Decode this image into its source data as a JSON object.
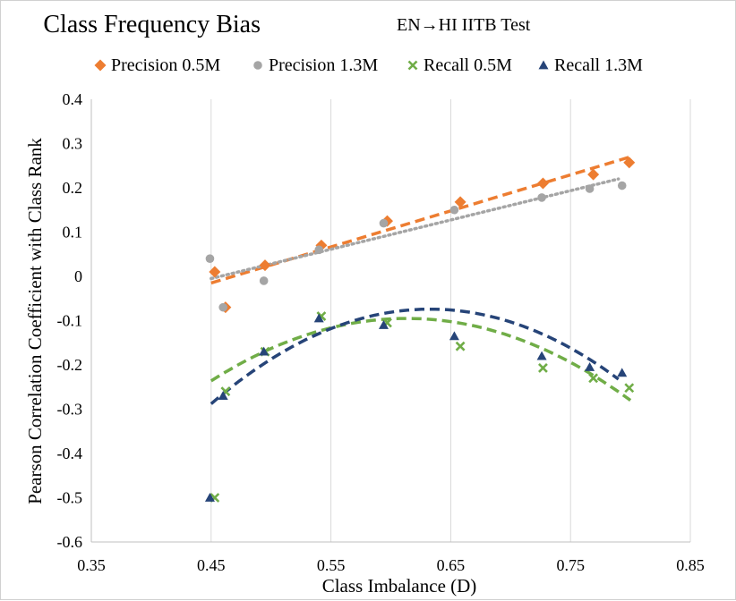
{
  "chart_data": {
    "type": "scatter",
    "title": "Class Frequency Bias",
    "subtitle": "EN→HI  IITB Test",
    "xlabel": "Class Imbalance (D)",
    "ylabel": "Pearson Correlation Coefficient with Class Rank",
    "xlim": [
      0.35,
      0.85
    ],
    "ylim": [
      -0.6,
      0.4
    ],
    "xticks": [
      0.35,
      0.45,
      0.55,
      0.65,
      0.75,
      0.85
    ],
    "yticks": [
      -0.6,
      -0.5,
      -0.4,
      -0.3,
      -0.2,
      -0.1,
      0,
      0.1,
      0.2,
      0.3,
      0.4
    ],
    "xtick_labels": [
      "0.35",
      "0.45",
      "0.55",
      "0.65",
      "0.75",
      "0.85"
    ],
    "ytick_labels": [
      "-0.6",
      "-0.5",
      "-0.4",
      "-0.3",
      "-0.2",
      "-0.1",
      "0",
      "0.1",
      "0.2",
      "0.3",
      "0.4"
    ],
    "grid": "vertical",
    "legend_position": "top",
    "series": [
      {
        "name": "Precision 0.5M",
        "marker": "diamond",
        "color": "#ED7D31",
        "x": [
          0.453,
          0.462,
          0.495,
          0.542,
          0.597,
          0.658,
          0.727,
          0.769,
          0.799
        ],
        "y": [
          0.01,
          -0.07,
          0.025,
          0.07,
          0.125,
          0.168,
          0.21,
          0.23,
          0.257
        ],
        "trend": {
          "kind": "linear",
          "x_range": [
            0.45,
            0.8
          ],
          "y_start": -0.015,
          "y_end": 0.27,
          "dash": "dashed"
        }
      },
      {
        "name": "Precision 1.3M",
        "marker": "circle",
        "color": "#A5A5A5",
        "x": [
          0.449,
          0.46,
          0.494,
          0.54,
          0.594,
          0.653,
          0.726,
          0.766,
          0.793
        ],
        "y": [
          0.04,
          -0.07,
          -0.01,
          0.06,
          0.12,
          0.15,
          0.178,
          0.198,
          0.205
        ],
        "trend": {
          "kind": "linear",
          "x_range": [
            0.45,
            0.79
          ],
          "y_start": -0.005,
          "y_end": 0.22,
          "dash": "dotted"
        }
      },
      {
        "name": "Recall 0.5M",
        "marker": "x",
        "color": "#70AD47",
        "x": [
          0.453,
          0.462,
          0.495,
          0.542,
          0.597,
          0.658,
          0.727,
          0.769,
          0.799
        ],
        "y": [
          -0.5,
          -0.26,
          -0.17,
          -0.09,
          -0.105,
          -0.158,
          -0.207,
          -0.23,
          -0.252
        ],
        "trend": {
          "kind": "poly2",
          "coeffs": [
            -5.3,
            6.5,
            -2.088
          ],
          "x_range": [
            0.45,
            0.8
          ],
          "dash": "dashed"
        }
      },
      {
        "name": "Recall 1.3M",
        "marker": "triangle",
        "color": "#264478",
        "x": [
          0.449,
          0.46,
          0.494,
          0.54,
          0.594,
          0.653,
          0.726,
          0.766,
          0.793
        ],
        "y": [
          -0.5,
          -0.27,
          -0.17,
          -0.095,
          -0.11,
          -0.135,
          -0.18,
          -0.205,
          -0.218
        ],
        "trend": {
          "kind": "poly2",
          "coeffs": [
            -6.4,
            8.1,
            -2.637
          ],
          "x_range": [
            0.45,
            0.79
          ],
          "dash": "dashed"
        }
      }
    ]
  }
}
